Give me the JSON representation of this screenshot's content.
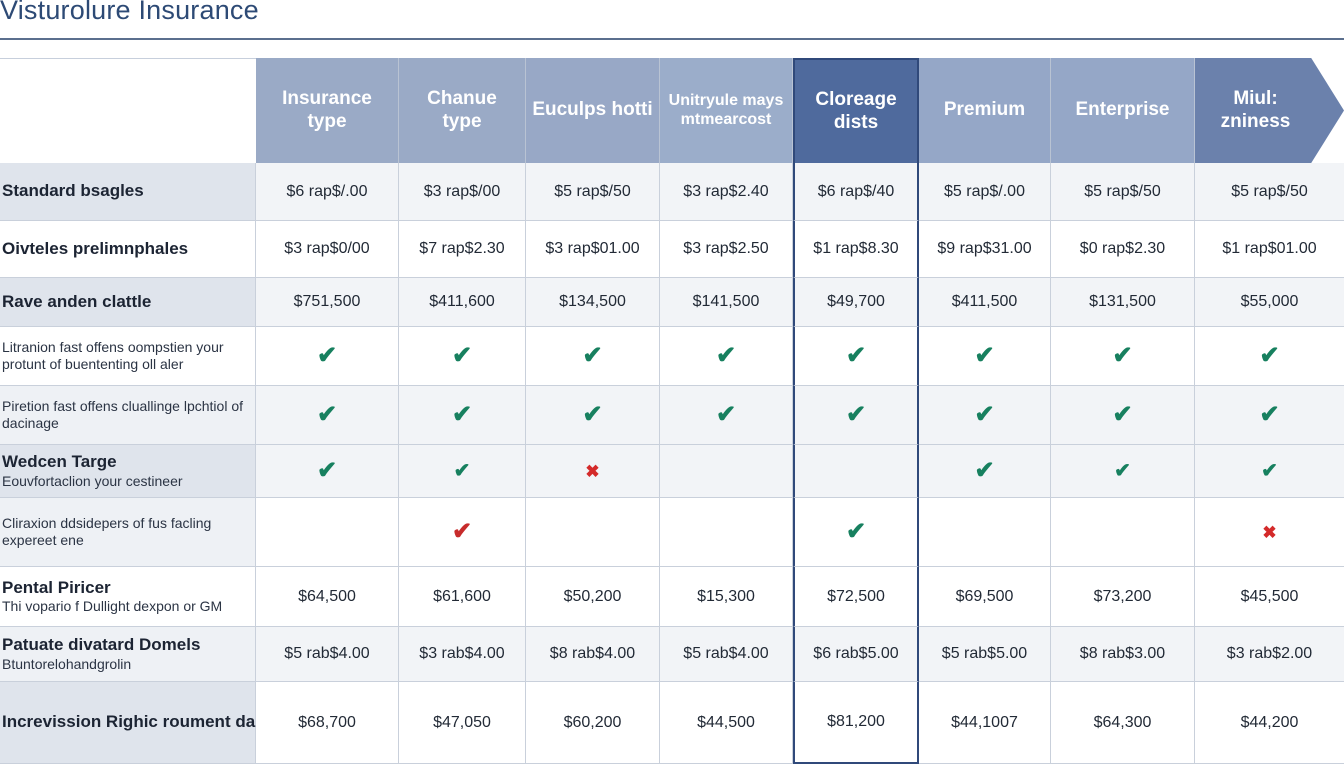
{
  "page": {
    "title": "Visturolure Insurance"
  },
  "columns": [
    "Insurance type",
    "Chanue type",
    "Euculps hotti",
    "Unitryule mays mtmearcost",
    "Cloreage dists",
    "Premium",
    "Enterprise",
    "Miul: zniness"
  ],
  "rows": [
    {
      "label": "Standard bsagles",
      "sub": "",
      "cells": [
        "$6 rap$/.00",
        "$3 rap$/00",
        "$5 rap$/50",
        "$3 rap$2.40",
        "$6 rap$/40",
        "$5 rap$/.00",
        "$5 rap$/50",
        "$5 rap$/50"
      ]
    },
    {
      "label": "Oivteles prelimnphales",
      "sub": "",
      "cells": [
        "$3 rap$0/00",
        "$7 rap$2.30",
        "$3 rap$01.00",
        "$3 rap$2.50",
        "$1 rap$8.30",
        "$9 rap$31.00",
        "$0 rap$2.30",
        "$1 rap$01.00"
      ]
    },
    {
      "label": "Rave anden clattle",
      "sub": "",
      "cells": [
        "$751,500",
        "$411,600",
        "$134,500",
        "$141,500",
        "$49,700",
        "$411,500",
        "$131,500",
        "$55,000"
      ]
    },
    {
      "label": "Litranion fast offens oompstien your protunt of buententing oll aler",
      "sub": "",
      "cells": [
        "check",
        "check",
        "check",
        "check",
        "check",
        "check",
        "check",
        "check"
      ]
    },
    {
      "label": "Piretion fast offens cluallinge lpchtiol of dacinage",
      "sub": "",
      "cells": [
        "check",
        "check",
        "check",
        "check",
        "check",
        "check",
        "check",
        "check"
      ]
    },
    {
      "label": "Wedcen Targe",
      "sub": "Eouvfortaclion your cestineer",
      "cells": [
        "check",
        "check-small",
        "cross",
        "",
        "",
        "check",
        "check-small",
        "check-small"
      ]
    },
    {
      "label": "Cliraxion ddsidepers of fus facling expereet ene",
      "sub": "",
      "cells": [
        "",
        "check-red",
        "",
        "",
        "check",
        "",
        "",
        "cross"
      ]
    },
    {
      "label": "Pental Piricer",
      "sub": "Thi vopario f Dullight dexpon or GM",
      "cells": [
        "$64,500",
        "$61,600",
        "$50,200",
        "$15,300",
        "$72,500",
        "$69,500",
        "$73,200",
        "$45,500"
      ]
    },
    {
      "label": "Patuate divatard Domels",
      "sub": "Btuntorelohandgrolin",
      "cells": [
        "$5 rab$4.00",
        "$3 rab$4.00",
        "$8 rab$4.00",
        "$5 rab$4.00",
        "$6 rab$5.00",
        "$5 rab$5.00",
        "$8 rab$3.00",
        "$3 rab$2.00"
      ]
    },
    {
      "label": "Increvission Righic roument dare makes",
      "sub": "",
      "cells": [
        "$68,700",
        "$47,050",
        "$60,200",
        "$44,500",
        "$81,200",
        "$44,1007",
        "$64,300",
        "$44,200"
      ]
    }
  ],
  "icons": {
    "check": "check-icon",
    "cross": "cross-icon"
  },
  "colors": {
    "header": "#9aaac6",
    "highlight_header": "#4f6a9d",
    "last_header": "#6b81ac",
    "check": "#17805f",
    "cross": "#d42a2a",
    "title": "#2d4a75"
  }
}
